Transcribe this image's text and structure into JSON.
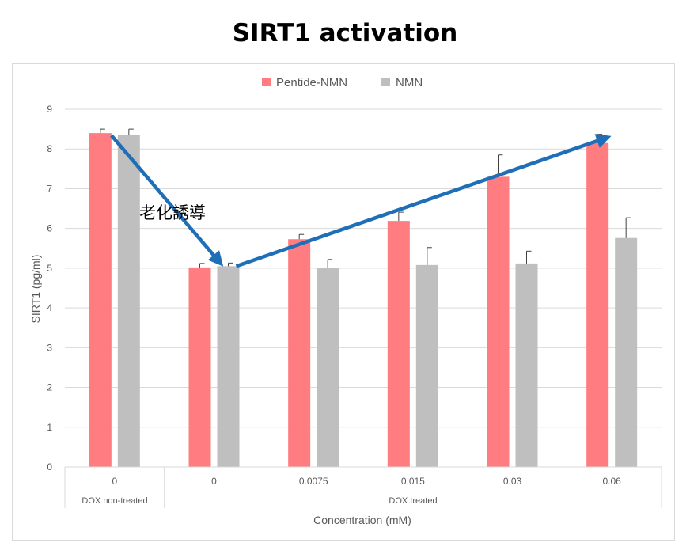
{
  "title": "SIRT1 activation",
  "annotation": "老化誘導",
  "colors": {
    "series1": "#ff7c80",
    "series2": "#bfbfbf",
    "arrow": "#1f6fb8",
    "grid": "#d9d9d9"
  },
  "chart_data": {
    "type": "bar",
    "title": "SIRT1 activation",
    "xlabel": "Concentration (mM)",
    "ylabel": "SIRT1 (pg/ml)",
    "ylim": [
      0,
      9
    ],
    "yticks": [
      0,
      1,
      2,
      3,
      4,
      5,
      6,
      7,
      8,
      9
    ],
    "grid": true,
    "legend": "top-center",
    "categories": [
      "0",
      "0",
      "0.0075",
      "0.015",
      "0.03",
      "0.06"
    ],
    "groups": [
      {
        "label": "DOX non-treated",
        "categories": [
          0
        ]
      },
      {
        "label": "DOX treated",
        "categories": [
          1,
          2,
          3,
          4,
          5
        ]
      }
    ],
    "series": [
      {
        "name": "Pentide-NMN",
        "values": [
          8.4,
          5.02,
          5.73,
          6.19,
          7.3,
          8.15
        ],
        "errors": [
          0.1,
          0.1,
          0.12,
          0.22,
          0.55,
          0.22
        ]
      },
      {
        "name": "NMN",
        "values": [
          8.36,
          5.05,
          5.0,
          5.08,
          5.12,
          5.76
        ],
        "errors": [
          0.14,
          0.08,
          0.22,
          0.44,
          0.31,
          0.51
        ]
      }
    ]
  }
}
